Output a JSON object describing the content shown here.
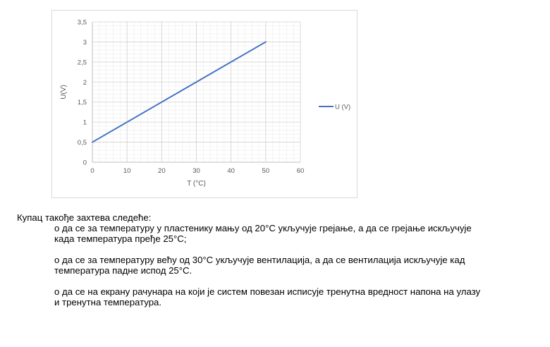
{
  "chart_data": {
    "type": "line",
    "x": [
      0,
      50
    ],
    "series": [
      {
        "name": "U (V)",
        "values": [
          0.5,
          3
        ],
        "color": "#4472c4"
      }
    ],
    "xlabel": "T (°C)",
    "ylabel": "U(V)",
    "xlim": [
      0,
      60
    ],
    "ylim": [
      0,
      3.5
    ],
    "x_ticks": [
      "0",
      "10",
      "20",
      "30",
      "40",
      "50",
      "60"
    ],
    "y_ticks": [
      "0",
      "0,5",
      "1",
      "1,5",
      "2",
      "2,5",
      "3",
      "3,5"
    ],
    "grid": true,
    "legend_position": "right"
  },
  "text": {
    "intro": "Купац такође захтева следеће:",
    "items": [
      "о да се за температуру у пластенику мању од 20°C укључује грејање, а да се грејање искључује\nкада температура пређе 25°C;",
      "о да се за температуру већу од 30°C укључује вентилација, а да се вентилација искључује кад\nтемпература падне испод 25°C.",
      "о да се на екрану рачунара на који је систем повезан исписује тренутна вредност напона на улазу\nи тренутна температура."
    ]
  }
}
